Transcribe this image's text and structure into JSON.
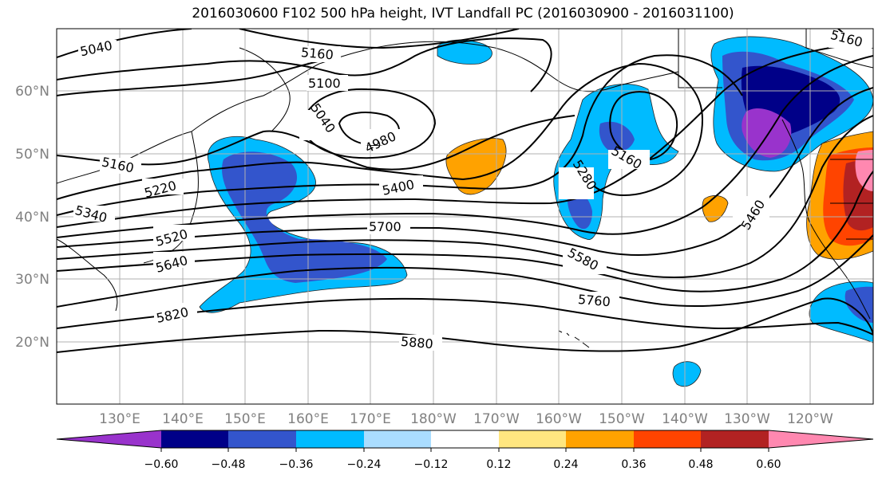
{
  "title": "2016030600 F102 500 hPa height, IVT Landfall PC (2016030900 - 2016031100)",
  "map": {
    "lat_labels": [
      "60°N",
      "50°N",
      "40°N",
      "30°N",
      "20°N"
    ],
    "lon_labels": [
      "130°E",
      "140°E",
      "150°E",
      "160°E",
      "170°E",
      "180°W",
      "170°W",
      "160°W",
      "150°W",
      "140°W",
      "130°W",
      "120°W"
    ],
    "contour_labels": [
      "5040",
      "5160",
      "5100",
      "5040",
      "4980",
      "5160",
      "5220",
      "5340",
      "5520",
      "5640",
      "5400",
      "5700",
      "5280",
      "5160",
      "5460",
      "5580",
      "5760",
      "5820",
      "5880",
      "5160"
    ]
  },
  "colorbar": {
    "colors": [
      "#9933cc",
      "#000088",
      "#3355cc",
      "#00bbff",
      "#aaddff",
      "#ffffff",
      "#ffe680",
      "#ffa200",
      "#ff4400",
      "#b22222",
      "#ff88b0"
    ],
    "ticks": [
      "−0.60",
      "−0.48",
      "−0.36",
      "−0.24",
      "−0.12",
      "0.12",
      "0.24",
      "0.36",
      "0.48",
      "0.60"
    ]
  }
}
